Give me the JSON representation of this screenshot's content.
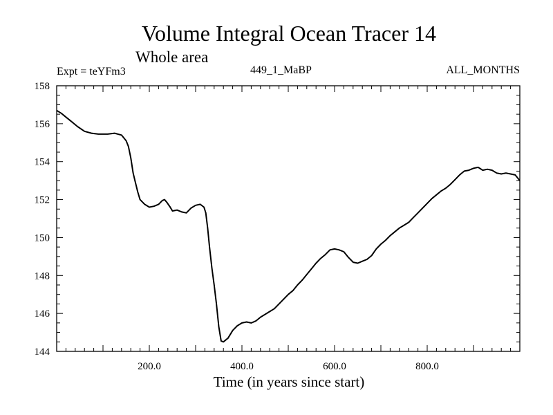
{
  "header": {
    "title": "Volume Integral Ocean Tracer 14",
    "subtitle": "Whole area",
    "expt_label": "Expt = teYFm3",
    "run_id": "449_1_MaBP",
    "months": "ALL_MONTHS"
  },
  "chart_data": {
    "type": "line",
    "title": "Volume Integral Ocean Tracer 14",
    "subtitle": "Whole area",
    "xlabel": "Time (in years since start)",
    "ylabel": "",
    "xlim": [
      0,
      1000
    ],
    "ylim": [
      144,
      158
    ],
    "x_ticks": [
      200,
      400,
      600,
      800
    ],
    "x_tick_labels": [
      "200.0",
      "400.0",
      "600.0",
      "800.0"
    ],
    "y_ticks": [
      144,
      146,
      148,
      150,
      152,
      154,
      156,
      158
    ],
    "y_tick_labels": [
      "144",
      "146",
      "148",
      "150",
      "152",
      "154",
      "156",
      "158"
    ],
    "grid": false,
    "color": "#000000",
    "series": [
      {
        "name": "teYFm3",
        "x": [
          0,
          10,
          20,
          30,
          45,
          60,
          75,
          90,
          100,
          110,
          125,
          140,
          150,
          155,
          160,
          165,
          170,
          175,
          180,
          190,
          200,
          210,
          220,
          228,
          233,
          238,
          245,
          250,
          260,
          270,
          280,
          290,
          300,
          310,
          318,
          322,
          326,
          330,
          335,
          340,
          345,
          350,
          355,
          360,
          370,
          380,
          390,
          400,
          410,
          420,
          430,
          440,
          450,
          460,
          470,
          480,
          490,
          500,
          510,
          520,
          530,
          540,
          550,
          560,
          570,
          580,
          590,
          600,
          610,
          620,
          630,
          640,
          650,
          660,
          670,
          680,
          690,
          700,
          710,
          720,
          730,
          740,
          750,
          760,
          770,
          780,
          790,
          800,
          810,
          820,
          830,
          840,
          850,
          860,
          870,
          880,
          890,
          900,
          910,
          920,
          930,
          940,
          950,
          960,
          970,
          980,
          990,
          1000
        ],
        "values": [
          156.7,
          156.55,
          156.35,
          156.15,
          155.85,
          155.6,
          155.5,
          155.45,
          155.45,
          155.45,
          155.5,
          155.4,
          155.1,
          154.8,
          154.2,
          153.4,
          152.9,
          152.4,
          152.0,
          151.75,
          151.6,
          151.65,
          151.75,
          151.95,
          152.0,
          151.85,
          151.6,
          151.4,
          151.45,
          151.35,
          151.3,
          151.55,
          151.7,
          151.75,
          151.6,
          151.3,
          150.5,
          149.5,
          148.4,
          147.5,
          146.5,
          145.3,
          144.55,
          144.5,
          144.7,
          145.1,
          145.35,
          145.5,
          145.55,
          145.5,
          145.6,
          145.8,
          145.95,
          146.1,
          146.25,
          146.5,
          146.75,
          147.0,
          147.2,
          147.5,
          147.75,
          148.05,
          148.35,
          148.65,
          148.9,
          149.1,
          149.35,
          149.4,
          149.35,
          149.25,
          148.95,
          148.7,
          148.65,
          148.75,
          148.85,
          149.05,
          149.4,
          149.65,
          149.85,
          150.1,
          150.3,
          150.5,
          150.65,
          150.8,
          151.05,
          151.3,
          151.55,
          151.8,
          152.05,
          152.25,
          152.45,
          152.6,
          152.8,
          153.05,
          153.3,
          153.5,
          153.55,
          153.65,
          153.7,
          153.55,
          153.6,
          153.55,
          153.4,
          153.35,
          153.4,
          153.35,
          153.3,
          153.0
        ]
      }
    ]
  }
}
